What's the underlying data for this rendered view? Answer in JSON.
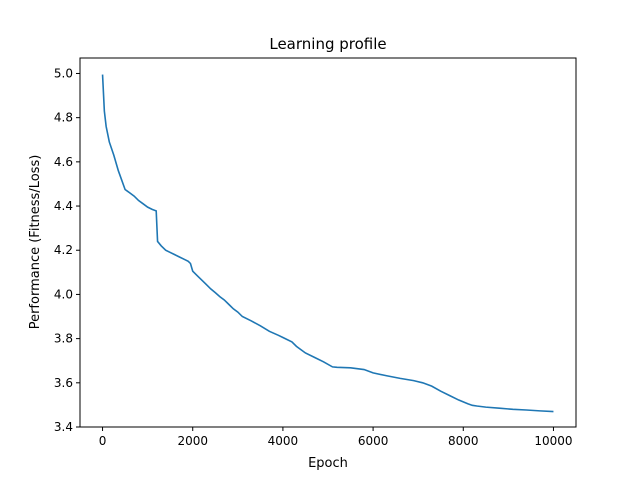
{
  "chart_data": {
    "type": "line",
    "title": "Learning profile",
    "xlabel": "Epoch",
    "ylabel": "Performance (Fitness/Loss)",
    "xlim": [
      -500,
      10500
    ],
    "ylim": [
      3.4,
      5.07
    ],
    "xticks": [
      0,
      2000,
      4000,
      6000,
      8000,
      10000
    ],
    "yticks": [
      3.4,
      3.6,
      3.8,
      4.0,
      4.2,
      4.4,
      4.6,
      4.8,
      5.0
    ],
    "grid": false,
    "legend": "none",
    "series": [
      {
        "color": "#1f77b4",
        "x": [
          0,
          40,
          80,
          150,
          250,
          350,
          500,
          600,
          700,
          800,
          900,
          1000,
          1100,
          1190,
          1220,
          1300,
          1400,
          1500,
          1600,
          1700,
          1800,
          1900,
          1950,
          2000,
          2100,
          2200,
          2300,
          2400,
          2500,
          2600,
          2700,
          2800,
          2900,
          3000,
          3100,
          3300,
          3500,
          3700,
          3900,
          4000,
          4200,
          4300,
          4500,
          4700,
          4900,
          5100,
          5200,
          5500,
          5800,
          6000,
          6300,
          6600,
          6900,
          7100,
          7300,
          7500,
          7700,
          7900,
          8100,
          8200,
          8300,
          8500,
          8800,
          9100,
          9400,
          9700,
          10000
        ],
        "values": [
          4.995,
          4.83,
          4.76,
          4.69,
          4.63,
          4.56,
          4.475,
          4.46,
          4.445,
          4.425,
          4.41,
          4.395,
          4.385,
          4.378,
          4.24,
          4.22,
          4.2,
          4.19,
          4.18,
          4.17,
          4.16,
          4.15,
          4.14,
          4.105,
          4.085,
          4.065,
          4.045,
          4.025,
          4.008,
          3.99,
          3.975,
          3.955,
          3.935,
          3.92,
          3.9,
          3.88,
          3.858,
          3.833,
          3.815,
          3.805,
          3.785,
          3.765,
          3.735,
          3.715,
          3.695,
          3.672,
          3.67,
          3.668,
          3.66,
          3.645,
          3.632,
          3.62,
          3.61,
          3.6,
          3.585,
          3.562,
          3.542,
          3.522,
          3.505,
          3.498,
          3.495,
          3.49,
          3.485,
          3.48,
          3.477,
          3.473,
          3.47
        ]
      }
    ]
  }
}
